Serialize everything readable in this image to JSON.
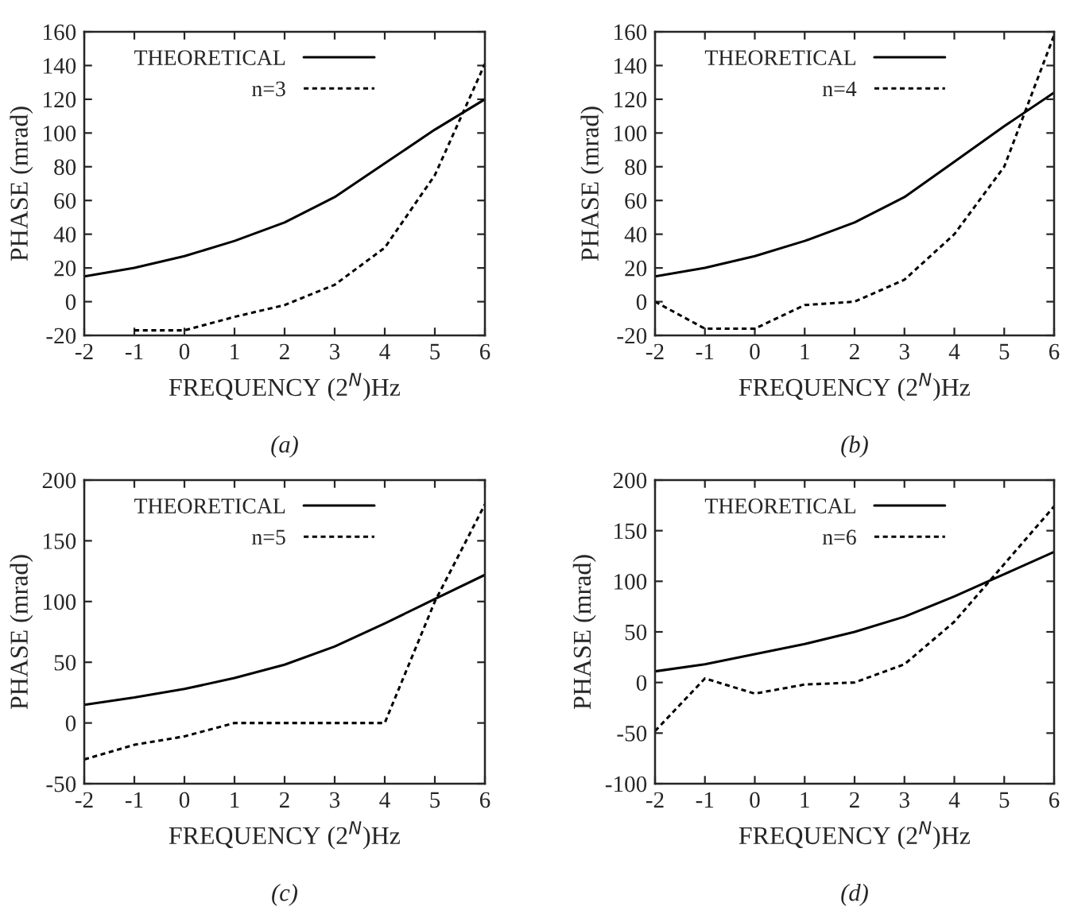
{
  "chart_data": [
    {
      "type": "line",
      "xlabel": "FREQUENCY (2$^{N}$)Hz",
      "ylabel": "PHASE (mrad)",
      "annotations": [
        "(a)"
      ],
      "xlim": [
        -2,
        6
      ],
      "xticks": [
        -2,
        -1,
        0,
        1,
        2,
        3,
        4,
        5,
        6
      ],
      "ylim": [
        -20,
        160
      ],
      "yticks": [
        -20,
        0,
        20,
        40,
        60,
        80,
        100,
        120,
        140,
        160
      ],
      "legend": "top left",
      "grid": false,
      "series": [
        {
          "name": "THEORETICAL",
          "color": "#000000",
          "line_style": "solid",
          "x": [
            -2,
            -1,
            0,
            1,
            2,
            3,
            4,
            5,
            6
          ],
          "values": [
            15,
            20,
            27,
            36,
            47,
            62,
            82,
            102,
            120
          ]
        },
        {
          "name": "n=3",
          "color": "#000000",
          "line_style": "dashed",
          "x": [
            -1,
            0,
            1,
            2,
            3,
            4,
            5,
            6
          ],
          "values": [
            -17,
            -17,
            -9,
            -2,
            10,
            32,
            75,
            141
          ]
        }
      ]
    },
    {
      "type": "line",
      "xlabel": "FREQUENCY (2$^{N}$)Hz",
      "ylabel": "PHASE (mrad)",
      "annotations": [
        "(b)"
      ],
      "xlim": [
        -2,
        6
      ],
      "xticks": [
        -2,
        -1,
        0,
        1,
        2,
        3,
        4,
        5,
        6
      ],
      "ylim": [
        -20,
        160
      ],
      "yticks": [
        -20,
        0,
        20,
        40,
        60,
        80,
        100,
        120,
        140,
        160
      ],
      "legend": "top left",
      "grid": false,
      "series": [
        {
          "name": "THEORETICAL",
          "color": "#000000",
          "line_style": "solid",
          "x": [
            -2,
            -1,
            0,
            1,
            2,
            3,
            4,
            5,
            6
          ],
          "values": [
            15,
            20,
            27,
            36,
            47,
            62,
            83,
            104,
            124
          ]
        },
        {
          "name": "n=4",
          "color": "#000000",
          "line_style": "dashed",
          "x": [
            -2,
            -1,
            0,
            1,
            2,
            3,
            4,
            5,
            6
          ],
          "values": [
            0,
            -16,
            -16,
            -2,
            0,
            13,
            40,
            80,
            158
          ]
        }
      ]
    },
    {
      "type": "line",
      "xlabel": "FREQUENCY (2$^{N}$)Hz",
      "ylabel": "PHASE (mrad)",
      "annotations": [
        "(c)"
      ],
      "xlim": [
        -2,
        6
      ],
      "xticks": [
        -2,
        -1,
        0,
        1,
        2,
        3,
        4,
        5,
        6
      ],
      "ylim": [
        -50,
        200
      ],
      "yticks": [
        -50,
        0,
        50,
        100,
        150,
        200
      ],
      "legend": "top left",
      "grid": false,
      "series": [
        {
          "name": "THEORETICAL",
          "color": "#000000",
          "line_style": "solid",
          "x": [
            -2,
            -1,
            0,
            1,
            2,
            3,
            4,
            5,
            6
          ],
          "values": [
            15,
            21,
            28,
            37,
            48,
            63,
            82,
            102,
            122
          ]
        },
        {
          "name": "n=5",
          "color": "#000000",
          "line_style": "dashed",
          "x": [
            -2,
            -1,
            0,
            1,
            2,
            3,
            4,
            5,
            6
          ],
          "values": [
            -30,
            -18,
            -11,
            0,
            0,
            0,
            0,
            100,
            180
          ]
        }
      ]
    },
    {
      "type": "line",
      "xlabel": "FREQUENCY (2$^{N}$)Hz",
      "ylabel": "PHASE (mrad)",
      "annotations": [
        "(d)"
      ],
      "xlim": [
        -2,
        6
      ],
      "xticks": [
        -2,
        -1,
        0,
        1,
        2,
        3,
        4,
        5,
        6
      ],
      "ylim": [
        -100,
        200
      ],
      "yticks": [
        -100,
        -50,
        0,
        50,
        100,
        150,
        200
      ],
      "legend": "top left",
      "grid": false,
      "series": [
        {
          "name": "THEORETICAL",
          "color": "#000000",
          "line_style": "solid",
          "x": [
            -2,
            -1,
            0,
            1,
            2,
            3,
            4,
            5,
            6
          ],
          "values": [
            11,
            18,
            28,
            38,
            50,
            65,
            85,
            107,
            129
          ]
        },
        {
          "name": "n=6",
          "color": "#000000",
          "line_style": "dashed",
          "x": [
            -2,
            -1,
            0,
            1,
            2,
            3,
            4,
            5,
            6
          ],
          "values": [
            -48,
            4,
            -11,
            -2,
            0,
            18,
            60,
            117,
            174
          ]
        }
      ]
    }
  ]
}
